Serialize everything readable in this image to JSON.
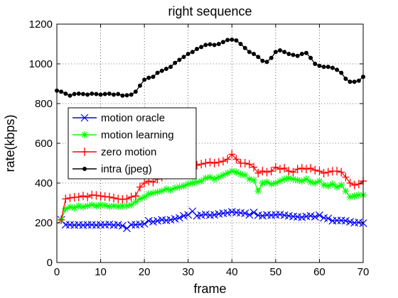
{
  "chart_data": {
    "type": "line",
    "title": "right sequence",
    "xlabel": "frame",
    "ylabel": "rate(kbps)",
    "xlim": [
      0,
      70
    ],
    "ylim": [
      0,
      1200
    ],
    "xticks": [
      0,
      10,
      20,
      30,
      40,
      50,
      60,
      70
    ],
    "yticks": [
      0,
      200,
      400,
      600,
      800,
      1000,
      1200
    ],
    "grid": true,
    "legend_position": "left-middle",
    "series": [
      {
        "name": "motion oracle",
        "color": "#0000ff",
        "marker": "x",
        "x": [
          1,
          2,
          3,
          4,
          5,
          6,
          7,
          8,
          9,
          10,
          11,
          12,
          13,
          14,
          15,
          16,
          17,
          18,
          19,
          20,
          21,
          22,
          23,
          24,
          25,
          26,
          27,
          28,
          29,
          30,
          31,
          32,
          33,
          34,
          35,
          36,
          37,
          38,
          39,
          40,
          41,
          42,
          43,
          44,
          45,
          46,
          47,
          48,
          49,
          50,
          51,
          52,
          53,
          54,
          55,
          56,
          57,
          58,
          59,
          60,
          61,
          62,
          63,
          64,
          65,
          66,
          67,
          68,
          69,
          70
        ],
        "values": [
          215,
          190,
          190,
          188,
          190,
          188,
          190,
          190,
          188,
          190,
          190,
          192,
          188,
          190,
          185,
          172,
          190,
          190,
          192,
          195,
          210,
          205,
          210,
          215,
          212,
          215,
          220,
          225,
          235,
          240,
          258,
          235,
          238,
          242,
          238,
          240,
          245,
          248,
          250,
          255,
          252,
          250,
          248,
          240,
          252,
          238,
          235,
          240,
          238,
          240,
          242,
          238,
          235,
          232,
          230,
          228,
          232,
          235,
          230,
          238,
          225,
          222,
          210,
          212,
          212,
          210,
          205,
          200,
          202,
          198
        ]
      },
      {
        "name": "motion learning",
        "color": "#00ff00",
        "marker": "*",
        "x": [
          1,
          2,
          3,
          4,
          5,
          6,
          7,
          8,
          9,
          10,
          11,
          12,
          13,
          14,
          15,
          16,
          17,
          18,
          19,
          20,
          21,
          22,
          23,
          24,
          25,
          26,
          27,
          28,
          29,
          30,
          31,
          32,
          33,
          34,
          35,
          36,
          37,
          38,
          39,
          40,
          41,
          42,
          43,
          44,
          45,
          46,
          47,
          48,
          49,
          50,
          51,
          52,
          53,
          54,
          55,
          56,
          57,
          58,
          59,
          60,
          61,
          62,
          63,
          64,
          65,
          66,
          67,
          68,
          69,
          70
        ],
        "values": [
          215,
          270,
          280,
          275,
          285,
          280,
          285,
          290,
          285,
          290,
          288,
          282,
          285,
          282,
          285,
          285,
          290,
          305,
          320,
          330,
          345,
          350,
          355,
          360,
          370,
          365,
          375,
          380,
          385,
          395,
          400,
          405,
          410,
          425,
          430,
          420,
          430,
          440,
          450,
          460,
          455,
          445,
          440,
          420,
          415,
          360,
          400,
          405,
          395,
          400,
          410,
          420,
          425,
          420,
          415,
          410,
          420,
          405,
          400,
          410,
          390,
          385,
          395,
          380,
          390,
          360,
          330,
          335,
          340,
          340
        ]
      },
      {
        "name": "zero motion",
        "color": "#ff0000",
        "marker": "+",
        "x": [
          1,
          2,
          3,
          4,
          5,
          6,
          7,
          8,
          9,
          10,
          11,
          12,
          13,
          14,
          15,
          16,
          17,
          18,
          19,
          20,
          21,
          22,
          23,
          24,
          25,
          26,
          27,
          28,
          29,
          30,
          31,
          32,
          33,
          34,
          35,
          36,
          37,
          38,
          39,
          40,
          41,
          42,
          43,
          44,
          45,
          46,
          47,
          48,
          49,
          50,
          51,
          52,
          53,
          54,
          55,
          56,
          57,
          58,
          59,
          60,
          61,
          62,
          63,
          64,
          65,
          66,
          67,
          68,
          69,
          70
        ],
        "values": [
          215,
          320,
          325,
          328,
          330,
          335,
          330,
          340,
          338,
          335,
          332,
          330,
          325,
          320,
          318,
          320,
          330,
          335,
          380,
          400,
          410,
          405,
          420,
          430,
          440,
          445,
          450,
          455,
          460,
          470,
          480,
          490,
          495,
          500,
          505,
          500,
          505,
          510,
          520,
          545,
          520,
          500,
          500,
          495,
          480,
          450,
          460,
          455,
          460,
          480,
          470,
          475,
          460,
          455,
          470,
          475,
          470,
          475,
          465,
          460,
          450,
          455,
          460,
          460,
          455,
          430,
          400,
          390,
          395,
          410
        ]
      },
      {
        "name": "intra (jpeg)",
        "color": "#000000",
        "marker": "dot",
        "x": [
          0,
          1,
          2,
          3,
          4,
          5,
          6,
          7,
          8,
          9,
          10,
          11,
          12,
          13,
          14,
          15,
          16,
          17,
          18,
          19,
          20,
          21,
          22,
          23,
          24,
          25,
          26,
          27,
          28,
          29,
          30,
          31,
          32,
          33,
          34,
          35,
          36,
          37,
          38,
          39,
          40,
          41,
          42,
          43,
          44,
          45,
          46,
          47,
          48,
          49,
          50,
          51,
          52,
          53,
          54,
          55,
          56,
          57,
          58,
          59,
          60,
          61,
          62,
          63,
          64,
          65,
          66,
          67,
          68,
          69,
          70
        ],
        "values": [
          865,
          860,
          850,
          840,
          848,
          850,
          848,
          845,
          850,
          848,
          845,
          848,
          850,
          845,
          848,
          840,
          842,
          845,
          860,
          890,
          920,
          930,
          935,
          955,
          965,
          975,
          985,
          1005,
          1020,
          1035,
          1050,
          1060,
          1075,
          1085,
          1095,
          1098,
          1095,
          1100,
          1110,
          1120,
          1122,
          1118,
          1100,
          1080,
          1060,
          1050,
          1035,
          1015,
          1010,
          1030,
          1060,
          1068,
          1060,
          1050,
          1045,
          1040,
          1050,
          1055,
          1030,
          1000,
          990,
          985,
          985,
          980,
          970,
          955,
          925,
          910,
          910,
          915,
          935
        ]
      }
    ]
  }
}
